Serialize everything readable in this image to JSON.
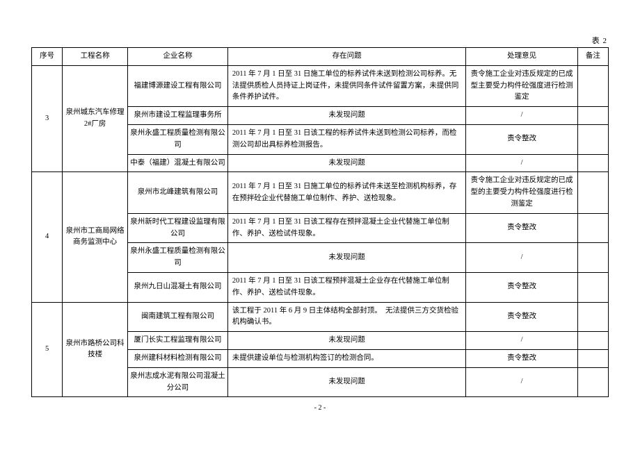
{
  "table_label": "表 2",
  "headers": {
    "seq": "序号",
    "project": "工程名称",
    "company": "企业名称",
    "issue": "存在问题",
    "opinion": "处理意见",
    "note": "备注"
  },
  "groups": [
    {
      "seq": "3",
      "project": "泉州城东汽车修理 2#厂房",
      "rows": [
        {
          "company": "福建博源建设工程有限公司",
          "issue": "2011 年 7 月 1 日至 31 日施工单位的标养试件未送到检测公司标养。无法提供质检人员持证上岗证件，未提供同条件试件留置方案，未提供同条件养护试件。",
          "opinion": "责令施工企业对违反规定的已成型主要受力构件砼强度进行检测鉴定",
          "note": ""
        },
        {
          "company": "泉州市建设工程监理事务所",
          "issue": "未发现问题",
          "opinion": "/",
          "note": ""
        },
        {
          "company": "泉州永盛工程质量检测有限公司",
          "issue": "2011 年 7 月 1 日至 31 日该工程的标养试件未送到检测公司标养，而检测公司却出具标养检测报告。",
          "opinion": "责令整改",
          "note": ""
        },
        {
          "company": "中泰（福建）混凝土有限公司",
          "issue": "未发现问题",
          "opinion": "/",
          "note": ""
        }
      ]
    },
    {
      "seq": "4",
      "project": "泉州市工商局网络商务监测中心",
      "rows": [
        {
          "company": "泉州市北峰建筑有限公司",
          "issue": "2011 年 7 月 1 日至 31 日施工单位的标养试件未送至检测机构标养，存在预拌砼企业代替施工单位制作、养护、送检现象。",
          "opinion": "责令施工企业对违反规定的已成型的主要受力构件砼强度进行检测鉴定",
          "note": ""
        },
        {
          "company": "泉州新时代工程建设监理有限公司",
          "issue": "2011 年 7 月 1 日至 31 日该工程存在预拌混凝土企业代替施工单位制作、养护、送检试件现象。",
          "opinion": "责令整改",
          "note": ""
        },
        {
          "company": "泉州永盛工程质量检测有限公司",
          "issue": "未发现问题",
          "opinion": "/",
          "note": ""
        },
        {
          "company": "泉州九日山混凝土有限公司",
          "issue": "2011 年 7 月 1 日至 31 日该工程预拌混凝土企业存在代替施工单位制作、养护、送检试件现象。",
          "opinion": "责令整改",
          "note": ""
        }
      ]
    },
    {
      "seq": "5",
      "project": "泉州市路桥公司科技楼",
      "rows": [
        {
          "company": "闽南建筑工程有限公司",
          "issue": "该工程于 2011 年 6 月 9 日主体结构全部封顶。　无法提供三方交货检验机构确认书。",
          "opinion": "责令整改",
          "note": ""
        },
        {
          "company": "厦门长实工程监理有限公司",
          "issue": "未发现问题",
          "opinion": "/",
          "note": ""
        },
        {
          "company": "泉州建科材料检测有限公司",
          "issue": "未提供建设单位与检测机构签订的检测合同。",
          "opinion": "责令整改",
          "note": ""
        },
        {
          "company": "泉州志成水泥有限公司混凝土分公司",
          "issue": "未发现问题",
          "opinion": "/",
          "note": ""
        }
      ]
    }
  ],
  "page_number": "- 2 -"
}
